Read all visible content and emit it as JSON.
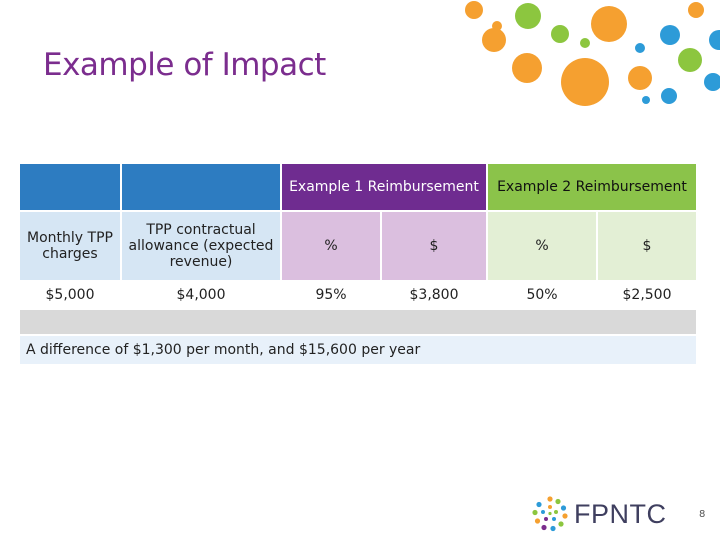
{
  "slide": {
    "title": "Example of Impact",
    "page_number": "8"
  },
  "table": {
    "header": {
      "example1": "Example 1 Reimbursement",
      "example2": "Example 2 Reimbursement"
    },
    "subheader": {
      "monthly": "Monthly TPP charges",
      "contractual": "TPP contractual allowance (expected revenue)",
      "ex1_pct": "%",
      "ex1_amt": "$",
      "ex2_pct": "%",
      "ex2_amt": "$"
    },
    "row": {
      "monthly": "$5,000",
      "contractual": "$4,000",
      "ex1_pct": "95%",
      "ex1_amt": "$3,800",
      "ex2_pct": "50%",
      "ex2_amt": "$2,500"
    },
    "note": "A difference of $1,300 per month, and $15,600 per year"
  },
  "logo": {
    "text": "FPNTC"
  },
  "colors": {
    "title": "#7b2d8e",
    "header_blue": "#2d7cc1",
    "header_purple": "#6f2c90",
    "header_green": "#8bc34a",
    "dot_orange": "#f5a030",
    "dot_green": "#8cc63f",
    "dot_blue": "#2d9bd8"
  }
}
